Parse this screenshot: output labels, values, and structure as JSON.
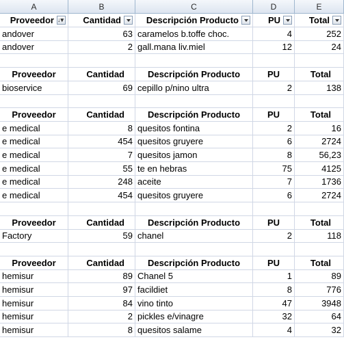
{
  "columns": [
    "A",
    "B",
    "C",
    "D",
    "E"
  ],
  "rows": [
    {
      "type": "header",
      "filters": true,
      "cells": [
        "Proveedor",
        "Cantidad",
        "Descripción Producto",
        "PU",
        "Total"
      ]
    },
    {
      "type": "data",
      "cells": [
        "andover",
        "63",
        "caramelos b.toffe choc.",
        "4",
        "252"
      ]
    },
    {
      "type": "data",
      "cells": [
        "andover",
        "2",
        "gall.mana liv.miel",
        "12",
        "24"
      ]
    },
    {
      "type": "empty"
    },
    {
      "type": "header",
      "cells": [
        "Proveedor",
        "Cantidad",
        "Descripción Producto",
        "PU",
        "Total"
      ]
    },
    {
      "type": "data",
      "cells": [
        "bioservice",
        "69",
        "cepillo p/nino ultra",
        "2",
        "138"
      ]
    },
    {
      "type": "empty"
    },
    {
      "type": "header",
      "cells": [
        "Proveedor",
        "Cantidad",
        "Descripción Producto",
        "PU",
        "Total"
      ]
    },
    {
      "type": "data",
      "cells": [
        "e medical",
        "8",
        "quesitos  fontina",
        "2",
        "16"
      ]
    },
    {
      "type": "data",
      "cells": [
        "e medical",
        "454",
        "quesitos gruyere",
        "6",
        "2724"
      ]
    },
    {
      "type": "data",
      "cells": [
        "e medical",
        "7",
        "quesitos jamon",
        "8",
        "56,23"
      ]
    },
    {
      "type": "data",
      "cells": [
        "e medical",
        "55",
        "te en hebras",
        "75",
        "4125"
      ]
    },
    {
      "type": "data",
      "cells": [
        "e medical",
        "248",
        "aceite",
        "7",
        "1736"
      ]
    },
    {
      "type": "data",
      "cells": [
        "e medical",
        "454",
        "quesitos gruyere",
        "6",
        "2724"
      ]
    },
    {
      "type": "empty"
    },
    {
      "type": "header",
      "cells": [
        "Proveedor",
        "Cantidad",
        "Descripción Producto",
        "PU",
        "Total"
      ]
    },
    {
      "type": "data",
      "cells": [
        "Factory",
        "59",
        "chanel",
        "2",
        "118"
      ]
    },
    {
      "type": "empty"
    },
    {
      "type": "header",
      "cells": [
        "Proveedor",
        "Cantidad",
        "Descripción Producto",
        "PU",
        "Total"
      ]
    },
    {
      "type": "data",
      "cells": [
        "hemisur",
        "89",
        "Chanel 5",
        "1",
        "89"
      ]
    },
    {
      "type": "data",
      "cells": [
        "hemisur",
        "97",
        "facildiet",
        "8",
        "776"
      ]
    },
    {
      "type": "data",
      "cells": [
        "hemisur",
        "84",
        "vino tinto",
        "47",
        "3948"
      ]
    },
    {
      "type": "data",
      "cells": [
        "hemisur",
        "2",
        "pickles e/vinagre",
        "32",
        "64"
      ]
    },
    {
      "type": "data",
      "cells": [
        "hemisur",
        "8",
        "quesitos salame",
        "4",
        "32"
      ]
    }
  ]
}
